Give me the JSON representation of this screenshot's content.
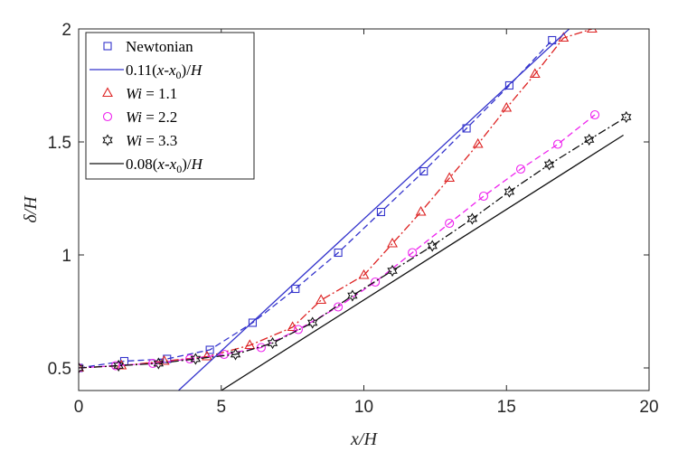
{
  "chart_data": {
    "type": "line",
    "xlabel": "x/H",
    "ylabel": "δ/H",
    "xlim": [
      0,
      20
    ],
    "ylim": [
      0.4,
      2
    ],
    "xticks": [
      0,
      5,
      10,
      15,
      20
    ],
    "yticks": [
      0.5,
      1,
      1.5,
      2
    ],
    "grid": false,
    "legend_position": "top-left",
    "series": [
      {
        "name": "Newtonian",
        "color": "#3333cc",
        "marker": "square",
        "line": "dashed",
        "x": [
          0,
          1.6,
          3.1,
          4.6,
          6.1,
          7.6,
          9.1,
          10.6,
          12.1,
          13.6,
          15.1,
          16.6
        ],
        "y": [
          0.5,
          0.53,
          0.54,
          0.58,
          0.7,
          0.85,
          1.01,
          1.19,
          1.37,
          1.56,
          1.75,
          1.95
        ]
      },
      {
        "name": "Wi = 1.1",
        "color": "#dd2222",
        "marker": "triangle",
        "line": "dashdot",
        "x": [
          0,
          1.5,
          3.0,
          4.5,
          6.0,
          7.5,
          8.5,
          10.0,
          11.0,
          12.0,
          13.0,
          14.0,
          15.0,
          16.0,
          17.0,
          18.0
        ],
        "y": [
          0.5,
          0.51,
          0.53,
          0.55,
          0.6,
          0.68,
          0.8,
          0.91,
          1.05,
          1.19,
          1.34,
          1.49,
          1.65,
          1.8,
          1.96,
          2.0
        ]
      },
      {
        "name": "Wi = 2.2",
        "color": "#ee22ee",
        "marker": "circle",
        "line": "dashed",
        "x": [
          0,
          1.3,
          2.6,
          3.9,
          5.1,
          6.4,
          7.7,
          9.1,
          10.4,
          11.7,
          13.0,
          14.2,
          15.5,
          16.8,
          18.1
        ],
        "y": [
          0.5,
          0.51,
          0.52,
          0.54,
          0.56,
          0.59,
          0.67,
          0.77,
          0.88,
          1.01,
          1.14,
          1.26,
          1.38,
          1.49,
          1.62
        ]
      },
      {
        "name": "Wi = 3.3",
        "color": "#111111",
        "marker": "hexagram",
        "line": "dashdot",
        "x": [
          0,
          1.4,
          2.8,
          4.1,
          5.5,
          6.8,
          8.2,
          9.6,
          11.0,
          12.4,
          13.8,
          15.1,
          16.5,
          17.9,
          19.2
        ],
        "y": [
          0.5,
          0.51,
          0.52,
          0.54,
          0.56,
          0.61,
          0.7,
          0.82,
          0.93,
          1.04,
          1.16,
          1.28,
          1.4,
          1.51,
          1.61
        ]
      },
      {
        "name": "0.11(x-x0)/H",
        "color": "#3333cc",
        "marker": "none",
        "line": "solid",
        "x": [
          3.5,
          17.2
        ],
        "y": [
          0.4,
          2.0
        ]
      },
      {
        "name": "0.08(x-x0)/H",
        "color": "#111111",
        "marker": "none",
        "line": "solid",
        "x": [
          5.0,
          19.1
        ],
        "y": [
          0.4,
          1.53
        ]
      }
    ],
    "legend": [
      {
        "kind": "marker",
        "marker": "square",
        "color": "#3333cc",
        "text": "Newtonian"
      },
      {
        "kind": "line",
        "color": "#3333cc",
        "text": "0.11(x-x0)/H",
        "pre": "0.11(",
        "ital": "x-x",
        "sub": "0",
        "post": ")/",
        "ital2": "H"
      },
      {
        "kind": "marker",
        "marker": "triangle",
        "color": "#dd2222",
        "text": "Wi = 1.1",
        "ital": "Wi",
        "post": " = 1.1"
      },
      {
        "kind": "marker",
        "marker": "circle",
        "color": "#ee22ee",
        "text": "Wi = 2.2",
        "ital": "Wi",
        "post": " = 2.2"
      },
      {
        "kind": "marker",
        "marker": "hexagram",
        "color": "#111111",
        "text": "Wi = 3.3",
        "ital": "Wi",
        "post": " = 3.3"
      },
      {
        "kind": "line",
        "color": "#111111",
        "text": "0.08(x-x0)/H",
        "pre": "0.08(",
        "ital": "x-x",
        "sub": "0",
        "post": ")/",
        "ital2": "H"
      }
    ]
  }
}
